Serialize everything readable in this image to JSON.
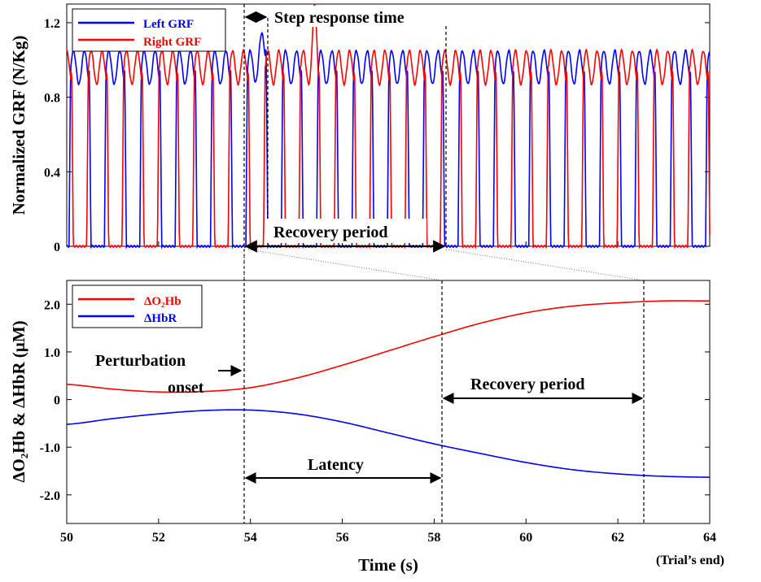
{
  "chart_data": [
    {
      "type": "line",
      "ylabel": "Normalized  GRF (N/Kg)",
      "xlim": [
        50,
        64
      ],
      "ylim": [
        0,
        1.3
      ],
      "yticks": [
        0,
        0.4,
        0.8,
        1.2
      ],
      "ytick_labels": [
        "0",
        "0.4",
        "0.8",
        "1.2"
      ],
      "series": [
        {
          "name": "Left GRF",
          "color": "#0000ff",
          "note": "Alternating stance phases: ~1.02 N/Kg plateau with double hump, drop to 0 during swing; stride period ~0.77 s; perturbation at 53.9 s with spike to ~1.17"
        },
        {
          "name": "Right GRF",
          "color": "#ff0000",
          "note": "Out-of-phase with left GRF; perturbation response includes peak ~1.28 at ~55.4 s and dip ~0.85 around 55.6 s"
        }
      ],
      "annotations": {
        "step_response": "Step response time",
        "recovery": "Recovery period"
      },
      "markers": {
        "perturbation_x": 53.9,
        "step_end_x": 54.4,
        "recovery_end_x": 58.2
      }
    },
    {
      "type": "line",
      "xlabel": "Time (s)",
      "ylabel": "ΔO₂Hb & ΔHbR (µM)",
      "xlim": [
        50,
        64
      ],
      "ylim": [
        -2.6,
        2.5
      ],
      "xticks": [
        50,
        52,
        54,
        56,
        58,
        60,
        62,
        64
      ],
      "xtick_labels": [
        "50",
        "52",
        "54",
        "56",
        "58",
        "60",
        "62",
        "64"
      ],
      "yticks": [
        2.0,
        1.0,
        0,
        -1.0,
        -2.0
      ],
      "ytick_labels": [
        "2.0",
        "1.0",
        "0",
        "-1.0",
        "-2.0"
      ],
      "series": [
        {
          "name": "ΔO₂Hb",
          "color": "#ff0000",
          "x": [
            50,
            51,
            52,
            53,
            54,
            55,
            56,
            57,
            58,
            59,
            60,
            61,
            62,
            63,
            64
          ],
          "y": [
            0.32,
            0.22,
            0.16,
            0.17,
            0.25,
            0.45,
            0.72,
            1.02,
            1.32,
            1.6,
            1.82,
            1.96,
            2.03,
            2.07,
            2.07
          ]
        },
        {
          "name": "ΔHbR",
          "color": "#0000ff",
          "x": [
            50,
            51,
            52,
            53,
            54,
            55,
            56,
            57,
            58,
            59,
            60,
            61,
            62,
            63,
            64
          ],
          "y": [
            -0.52,
            -0.4,
            -0.3,
            -0.23,
            -0.22,
            -0.3,
            -0.47,
            -0.7,
            -0.93,
            -1.13,
            -1.32,
            -1.47,
            -1.56,
            -1.61,
            -1.63
          ]
        }
      ],
      "annotations": {
        "perturbation_line1": "Perturbation",
        "perturbation_line2": "onset",
        "latency": "Latency",
        "recovery": "Recovery period",
        "trial_end": "(Trial’s end)"
      },
      "markers": {
        "perturbation_x": 53.9,
        "latency_end_x": 58.2,
        "recovery_end_x": 62.6
      }
    }
  ],
  "colors": {
    "left": "#0000ff",
    "right": "#ff0000"
  }
}
